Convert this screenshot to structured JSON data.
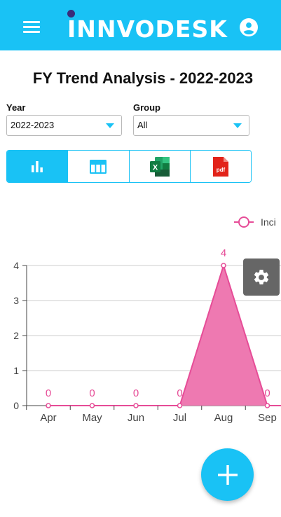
{
  "header": {
    "app_name": "INNVODESK",
    "menu_icon": "hamburger-menu-icon",
    "account_icon": "account-circle-icon",
    "bg_color": "#19c2f5"
  },
  "page": {
    "title": "FY Trend Analysis - 2022-2023"
  },
  "filters": {
    "year_label": "Year",
    "year_value": "2022-2023",
    "group_label": "Group",
    "group_value": "All"
  },
  "view_toggle": [
    {
      "name": "bar-chart-view",
      "icon": "bar-chart-icon",
      "active": true
    },
    {
      "name": "table-view",
      "icon": "table-icon",
      "active": false
    },
    {
      "name": "excel-export",
      "icon": "excel-icon",
      "active": false
    },
    {
      "name": "pdf-export",
      "icon": "pdf-icon",
      "active": false
    }
  ],
  "excel_icon_text": "X",
  "pdf_icon_text": "pdf",
  "chart_data": {
    "type": "area",
    "categories": [
      "Apr",
      "May",
      "Jun",
      "Jul",
      "Aug",
      "Sep"
    ],
    "series": [
      {
        "name": "Inci",
        "values": [
          0,
          0,
          0,
          0,
          4,
          0
        ],
        "color": "#e64c97",
        "fill": "#ee79b1"
      }
    ],
    "ylim": [
      0,
      4
    ],
    "yticks": [
      "0",
      "1",
      "2",
      "3",
      "4"
    ],
    "grid": true,
    "legend": "top-right"
  },
  "actions": {
    "settings_icon": "gear-icon",
    "fab_icon": "plus-icon"
  }
}
